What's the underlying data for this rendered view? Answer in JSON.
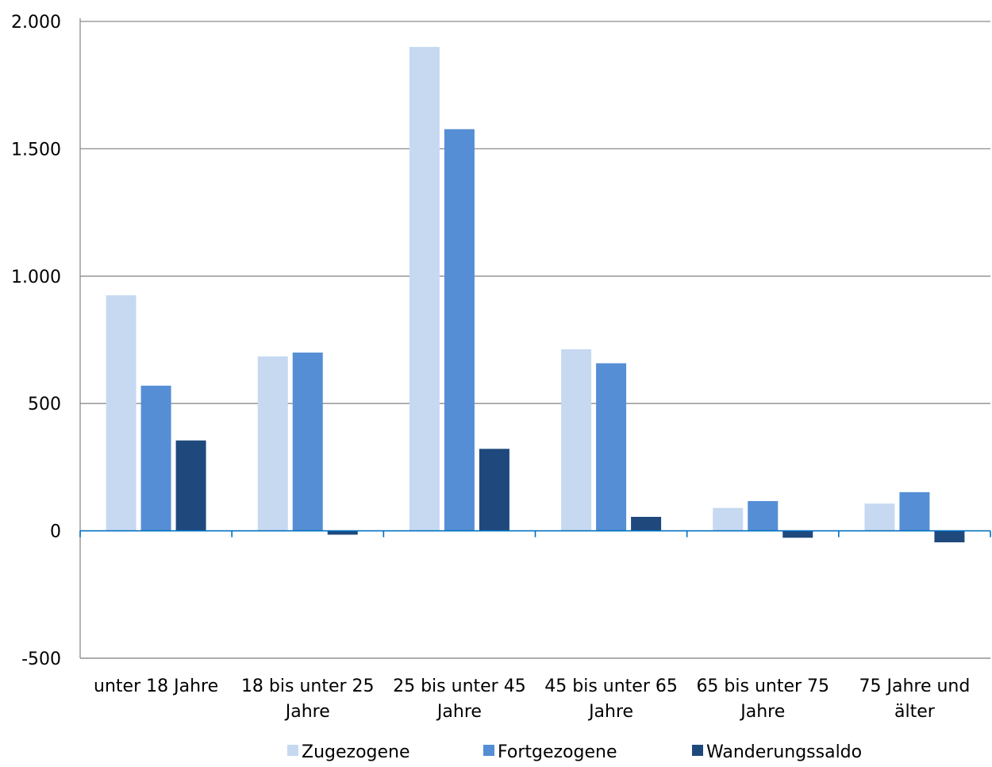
{
  "chart_data": {
    "type": "bar",
    "categories": [
      [
        "unter 18 Jahre"
      ],
      [
        "18 bis unter 25",
        "Jahre"
      ],
      [
        "25 bis unter 45",
        "Jahre"
      ],
      [
        "45 bis unter 65",
        "Jahre"
      ],
      [
        "65 bis unter 75",
        "Jahre"
      ],
      [
        "75 Jahre und",
        "älter"
      ]
    ],
    "series": [
      {
        "name": "Zugezogene",
        "color": "#c7d9f1",
        "values": [
          925,
          685,
          1900,
          713,
          90,
          107
        ]
      },
      {
        "name": "Fortgezogene",
        "color": "#558ed5",
        "values": [
          570,
          700,
          1577,
          658,
          117,
          152
        ]
      },
      {
        "name": "Wanderungssaldo",
        "color": "#1f497d",
        "values": [
          355,
          -15,
          322,
          55,
          -27,
          -45
        ]
      }
    ],
    "ylim": [
      -500,
      2000
    ],
    "yticks": [
      2000,
      1500,
      1000,
      500,
      0,
      -500
    ],
    "ytick_labels": [
      "2.000",
      "1.500",
      "1.000",
      "500",
      "0",
      "-500"
    ],
    "grid": true,
    "legend": "bottom",
    "axis_color": "#0070c0",
    "grid_color": "#8c8c8c"
  }
}
